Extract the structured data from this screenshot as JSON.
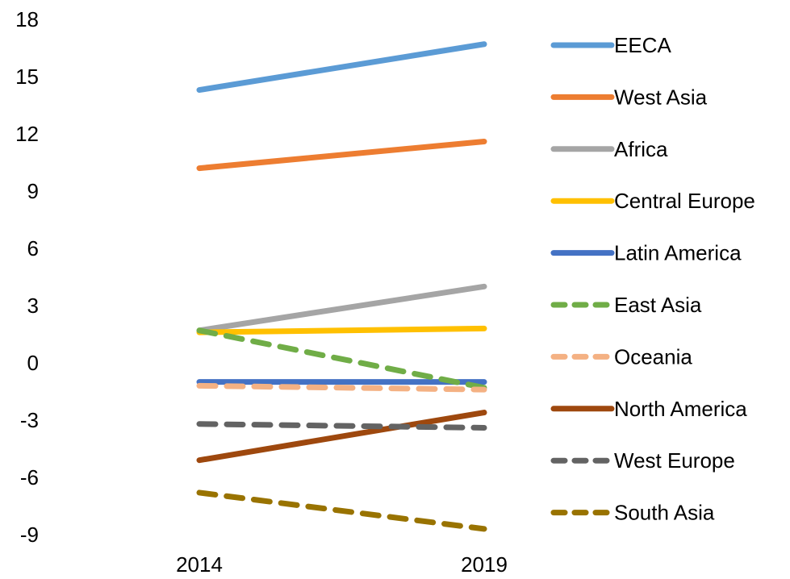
{
  "chart_data": {
    "type": "line",
    "title": "",
    "xlabel": "",
    "ylabel": "",
    "x": [
      "2014",
      "2019"
    ],
    "y_ticks": [
      18,
      15,
      12,
      9,
      6,
      3,
      0,
      -3,
      -6,
      -9
    ],
    "y_tick_labels": [
      "18",
      "15",
      "12",
      "9",
      "6",
      "3",
      "0",
      "-3",
      "-6",
      "-9"
    ],
    "ylim": [
      -9,
      18
    ],
    "grid": false,
    "legend_position": "right",
    "background": "#ffffff",
    "series": [
      {
        "name": "EECA",
        "values": [
          14.3,
          16.7
        ],
        "color": "#5b9bd5",
        "dash": "solid"
      },
      {
        "name": "West Asia",
        "values": [
          10.2,
          11.6
        ],
        "color": "#ed7d31",
        "dash": "solid"
      },
      {
        "name": "Africa",
        "values": [
          1.7,
          4.0
        ],
        "color": "#a5a5a5",
        "dash": "solid"
      },
      {
        "name": "Central Europe",
        "values": [
          1.6,
          1.8
        ],
        "color": "#ffc000",
        "dash": "solid"
      },
      {
        "name": "Latin America",
        "values": [
          -1.0,
          -1.0
        ],
        "color": "#4472c4",
        "dash": "solid"
      },
      {
        "name": "East Asia",
        "values": [
          1.7,
          -1.3
        ],
        "color": "#70ad47",
        "dash": "dashed"
      },
      {
        "name": "Oceania",
        "values": [
          -1.2,
          -1.4
        ],
        "color": "#f4b183",
        "dash": "dashed"
      },
      {
        "name": "North America",
        "values": [
          -5.1,
          -2.6
        ],
        "color": "#9e480e",
        "dash": "solid"
      },
      {
        "name": "West Europe",
        "values": [
          -3.2,
          -3.4
        ],
        "color": "#636363",
        "dash": "dashed"
      },
      {
        "name": "South Asia",
        "values": [
          -6.8,
          -8.7
        ],
        "color": "#997300",
        "dash": "dashed"
      }
    ]
  }
}
